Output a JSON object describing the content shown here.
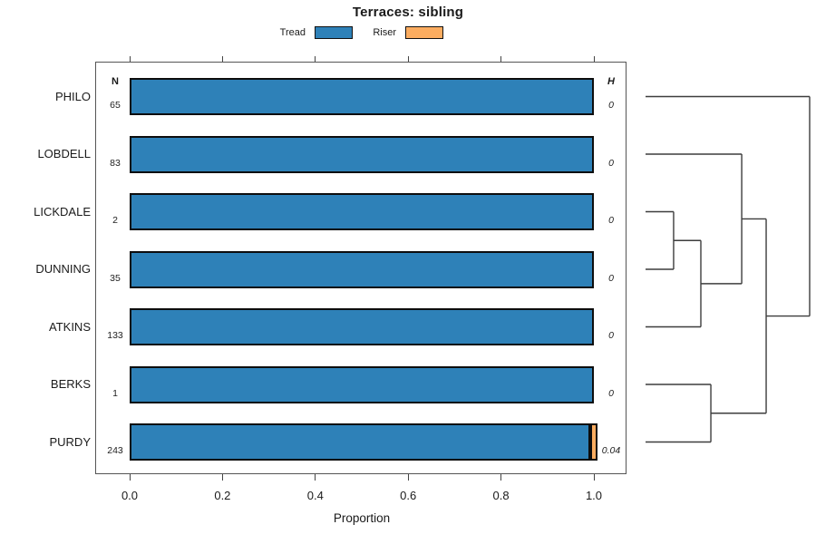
{
  "title": "Terraces: sibling",
  "legend": {
    "items": [
      {
        "label": "Tread",
        "color": "#2E81B8"
      },
      {
        "label": "Riser",
        "color": "#FBAC60"
      }
    ]
  },
  "columns": {
    "n_header": "N",
    "h_header": "H"
  },
  "x_axis": {
    "label": "Proportion",
    "ticks": [
      "0.0",
      "0.2",
      "0.4",
      "0.6",
      "0.8",
      "1.0"
    ],
    "range": [
      0,
      1
    ]
  },
  "chart_data": {
    "type": "bar",
    "orientation": "horizontal",
    "stacked": true,
    "title": "Terraces: sibling",
    "xlabel": "Proportion",
    "xlim": [
      0,
      1
    ],
    "categories": [
      "PHILO",
      "LOBDELL",
      "LICKDALE",
      "DUNNING",
      "ATKINS",
      "BERKS",
      "PURDY"
    ],
    "series": [
      {
        "name": "Tread",
        "color": "#2E81B8",
        "values": [
          1.0,
          1.0,
          1.0,
          1.0,
          1.0,
          1.0,
          0.992
        ]
      },
      {
        "name": "Riser",
        "color": "#FBAC60",
        "values": [
          0,
          0,
          0,
          0,
          0,
          0,
          0.008
        ]
      }
    ],
    "n_values": [
      65,
      83,
      2,
      35,
      133,
      1,
      243
    ],
    "h_values": [
      "0",
      "0",
      "0",
      "0",
      "0",
      "0",
      "0.04"
    ]
  },
  "dendrogram": {
    "leaf_order": [
      "PHILO",
      "LOBDELL",
      "LICKDALE",
      "DUNNING",
      "ATKINS",
      "BERKS",
      "PURDY"
    ],
    "tree": {
      "height": 1.0,
      "children": [
        {
          "leaf": "PHILO"
        },
        {
          "height": 0.735,
          "children": [
            {
              "height": 0.586,
              "children": [
                {
                  "leaf": "LOBDELL"
                },
                {
                  "height": 0.337,
                  "children": [
                    {
                      "height": 0.171,
                      "children": [
                        {
                          "leaf": "LICKDALE"
                        },
                        {
                          "leaf": "DUNNING"
                        }
                      ]
                    },
                    {
                      "leaf": "ATKINS"
                    }
                  ]
                }
              ]
            },
            {
              "height": 0.398,
              "children": [
                {
                  "leaf": "BERKS"
                },
                {
                  "leaf": "PURDY"
                }
              ]
            }
          ]
        }
      ]
    }
  }
}
